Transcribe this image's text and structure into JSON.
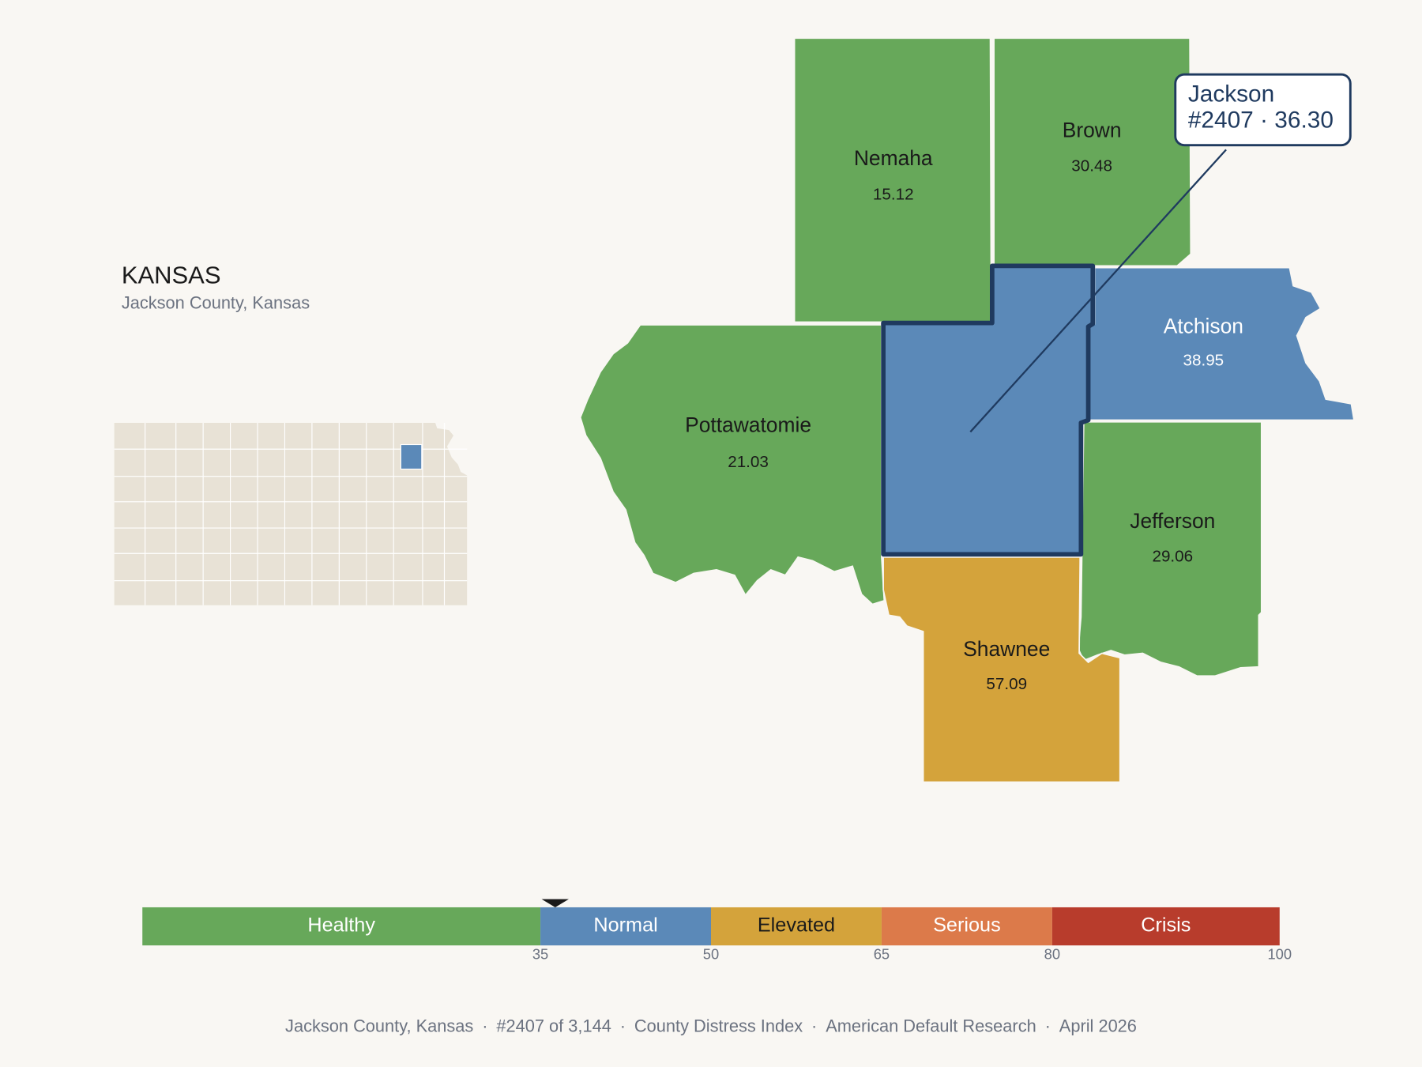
{
  "header": {
    "title": "KANSAS",
    "subtitle": "Jackson County, Kansas"
  },
  "counties": [
    {
      "name": "Nemaha",
      "value": 15.12,
      "color": "#67a85a",
      "text_color": "#1a1a1a"
    },
    {
      "name": "Brown",
      "value": 30.48,
      "color": "#67a85a",
      "text_color": "#1a1a1a"
    },
    {
      "name": "Pottawatomie",
      "value": 21.03,
      "color": "#67a85a",
      "text_color": "#1a1a1a"
    },
    {
      "name": "Atchison",
      "value": 38.95,
      "color": "#5b89b8",
      "text_color": "#ffffff"
    },
    {
      "name": "Jefferson",
      "value": 29.06,
      "color": "#67a85a",
      "text_color": "#1a1a1a"
    },
    {
      "name": "Shawnee",
      "value": 57.09,
      "color": "#d4a33b",
      "text_color": "#1a1a1a"
    }
  ],
  "focus": {
    "name": "Jackson",
    "label": "#2407 · 36.30",
    "value": 36.3,
    "color": "#5b89b8"
  },
  "scale": {
    "lim": [
      0,
      100
    ],
    "ticks": [
      35,
      50,
      65,
      80,
      100
    ],
    "bands": [
      {
        "label": "Healthy",
        "color": "#67a85a",
        "text_color": "#ffffff"
      },
      {
        "label": "Normal",
        "color": "#5b89b8",
        "text_color": "#ffffff"
      },
      {
        "label": "Elevated",
        "color": "#d4a33b",
        "text_color": "#1a1a1a"
      },
      {
        "label": "Serious",
        "color": "#dc7a4a",
        "text_color": "#ffffff"
      },
      {
        "label": "Crisis",
        "color": "#b83c2c",
        "text_color": "#ffffff"
      }
    ]
  },
  "footer": {
    "items": [
      "Jackson County, Kansas",
      "#2407 of 3,144",
      "County Distress Index",
      "American Default Research",
      "April 2026"
    ],
    "separator": "·"
  }
}
